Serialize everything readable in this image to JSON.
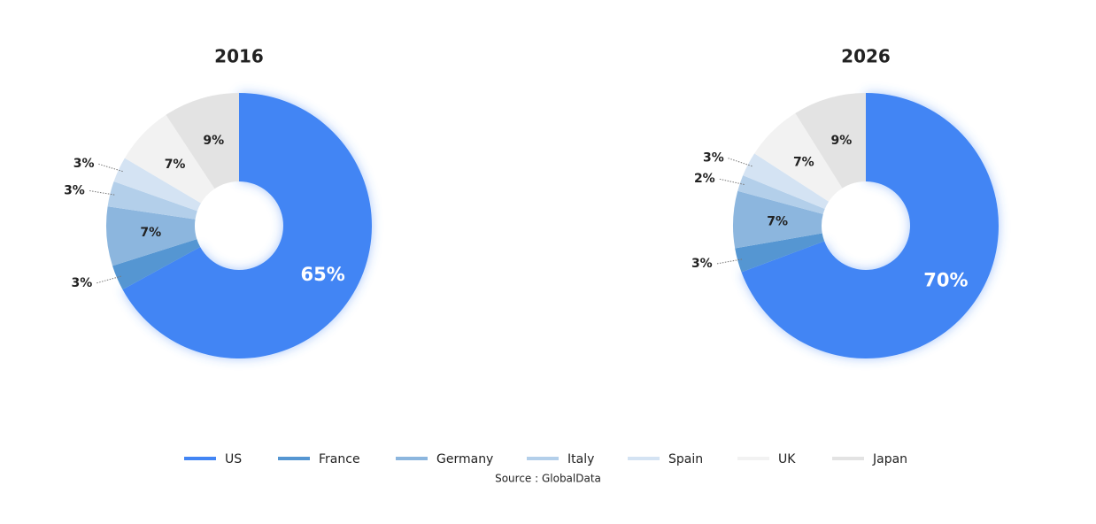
{
  "chart_data": [
    {
      "type": "pie",
      "title": "2016",
      "categories": [
        "US",
        "France",
        "Germany",
        "Italy",
        "Spain",
        "UK",
        "Japan"
      ],
      "values": [
        65,
        3,
        7,
        3,
        3,
        7,
        9
      ],
      "value_labels": [
        "65%",
        "3%",
        "7%",
        "3%",
        "3%",
        "7%",
        "9%"
      ],
      "colors": [
        "#4285f4",
        "#5596d2",
        "#8cb6de",
        "#b3cfea",
        "#d4e3f3",
        "#f2f2f2",
        "#e3e3e3"
      ]
    },
    {
      "type": "pie",
      "title": "2026",
      "categories": [
        "US",
        "France",
        "Germany",
        "Italy",
        "Spain",
        "UK",
        "Japan"
      ],
      "values": [
        70,
        3,
        7,
        2,
        3,
        7,
        9
      ],
      "value_labels": [
        "70%",
        "3%",
        "7%",
        "2%",
        "3%",
        "7%",
        "9%"
      ],
      "colors": [
        "#4285f4",
        "#5596d2",
        "#8cb6de",
        "#b3cfea",
        "#d4e3f3",
        "#f2f2f2",
        "#e3e3e3"
      ]
    }
  ],
  "source": "Source : GlobalData"
}
